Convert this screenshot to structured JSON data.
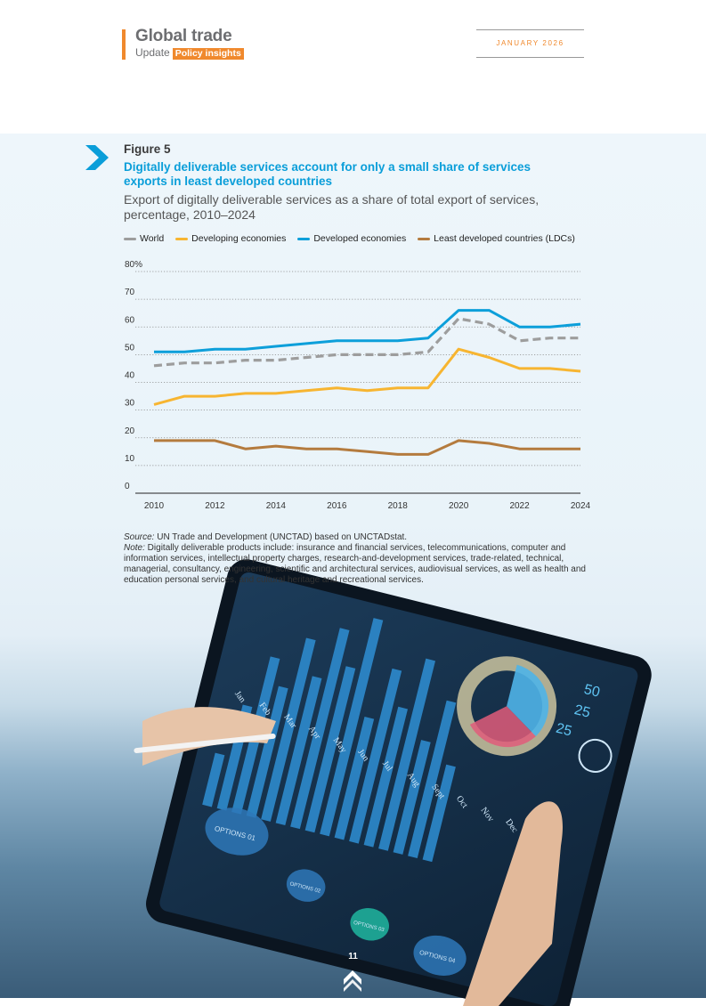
{
  "header": {
    "brand_title": "Global trade",
    "brand_sub": "Update",
    "brand_tag": "Policy insights",
    "date": "JANUARY 2026"
  },
  "figure": {
    "label": "Figure 5",
    "title": "Digitally deliverable services account for only a small share of services exports in least developed countries",
    "subtitle": "Export of digitally deliverable services as a share of total export of services, percentage, 2010–2024"
  },
  "chart_data": {
    "type": "line",
    "x": [
      2010,
      2011,
      2012,
      2013,
      2014,
      2015,
      2016,
      2017,
      2018,
      2019,
      2020,
      2021,
      2022,
      2023,
      2024
    ],
    "x_ticks": [
      "2010",
      "2012",
      "2014",
      "2016",
      "2018",
      "2020",
      "2022",
      "2024"
    ],
    "y_ticks": [
      "0",
      "10",
      "20",
      "30",
      "40",
      "50",
      "60",
      "70",
      "80%"
    ],
    "ylim": [
      0,
      80
    ],
    "grid": true,
    "legend_position": "top-left",
    "series": [
      {
        "name": "World",
        "color": "#9d9d9d",
        "dashed": true,
        "values": [
          46,
          47,
          47,
          48,
          48,
          49,
          50,
          50,
          50,
          51,
          63,
          61,
          55,
          56,
          56
        ]
      },
      {
        "name": "Developing economies",
        "color": "#f7b531",
        "dashed": false,
        "values": [
          32,
          35,
          35,
          36,
          36,
          37,
          38,
          37,
          38,
          38,
          52,
          49,
          45,
          45,
          44
        ]
      },
      {
        "name": "Developed economies",
        "color": "#0d9fda",
        "dashed": false,
        "values": [
          51,
          51,
          52,
          52,
          53,
          54,
          55,
          55,
          55,
          56,
          66,
          66,
          60,
          60,
          61
        ]
      },
      {
        "name": "Least developed countries (LDCs)",
        "color": "#b47b3e",
        "dashed": false,
        "values": [
          19,
          19,
          19,
          16,
          17,
          16,
          16,
          15,
          14,
          14,
          19,
          18,
          16,
          16,
          16
        ]
      }
    ]
  },
  "notes": {
    "source_label": "Source:",
    "source_text": " UN Trade and Development (UNCTAD) based on UNCTADstat.",
    "note_label": "Note:",
    "note_text": " Digitally deliverable products include: insurance and financial services, telecommunications, computer and information services, intellectual property charges, research-and-development services, trade-related, technical, managerial, consultancy, engineering, scientific and architectural services, audiovisual services, as well as health and education personal services, and cultural heritage and recreational services."
  },
  "tablet_labels": {
    "months": [
      "Jan",
      "Feb",
      "Mar",
      "Apr",
      "May",
      "Jun",
      "Jul",
      "Aug",
      "Sept",
      "Oct",
      "Nov",
      "Dec"
    ],
    "nums": [
      "50",
      "25",
      "25"
    ],
    "options": [
      "OPTIONS 01",
      "OPTIONS 02",
      "OPTIONS 03",
      "OPTIONS 04"
    ]
  },
  "page_number": "11"
}
